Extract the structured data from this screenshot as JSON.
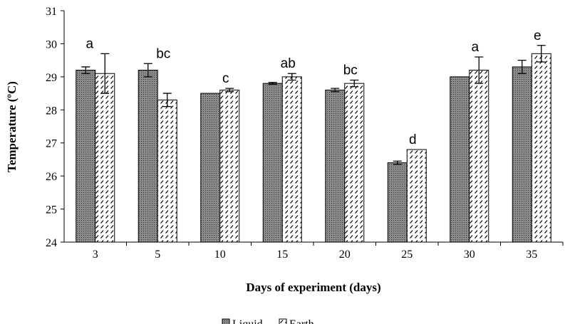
{
  "chart_data": {
    "type": "bar",
    "xlabel": "Days of experiment (days)",
    "ylabel": "Temperature (ºC)",
    "ylim": [
      24,
      31
    ],
    "yticks": [
      "24",
      "25",
      "26",
      "27",
      "28",
      "29",
      "30",
      "31"
    ],
    "categories": [
      "3",
      "5",
      "10",
      "15",
      "20",
      "25",
      "30",
      "35"
    ],
    "series": [
      {
        "name": "Liquid",
        "values": [
          29.2,
          29.2,
          28.5,
          28.8,
          28.6,
          26.4,
          29.0,
          29.3
        ],
        "errors": [
          0.1,
          0.2,
          0.0,
          0.03,
          0.05,
          0.05,
          0.0,
          0.2
        ],
        "color": "#7a7a7a"
      },
      {
        "name": "Earth",
        "values": [
          29.1,
          28.3,
          28.6,
          29.0,
          28.8,
          26.8,
          29.2,
          29.7
        ],
        "errors": [
          0.6,
          0.2,
          0.05,
          0.1,
          0.1,
          0.0,
          0.4,
          0.25
        ],
        "color": "#ffffff"
      }
    ],
    "annotations": [
      "a",
      "bc",
      "c",
      "ab",
      "bc",
      "d",
      "a",
      "e"
    ],
    "legend_position": "bottom"
  }
}
